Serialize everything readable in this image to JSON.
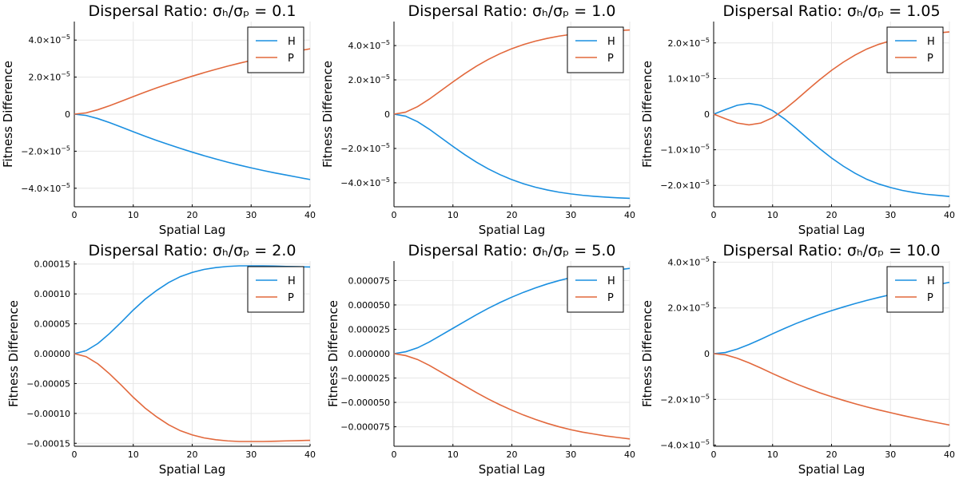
{
  "chart_data": [
    {
      "type": "line",
      "title": "Dispersal Ratio: σₕ/σₚ = 0.1",
      "xlabel": "Spatial Lag",
      "ylabel": "Fitness Difference",
      "xlim": [
        0,
        40
      ],
      "ylim": [
        -5e-05,
        5e-05
      ],
      "xticks": [
        0,
        10,
        20,
        30,
        40
      ],
      "xtick_labels": [
        "0",
        "10",
        "20",
        "30",
        "40"
      ],
      "yticks": [
        -4e-05,
        -2e-05,
        0,
        2e-05,
        4e-05
      ],
      "ytick_labels": [
        {
          "m": "−4.0×10",
          "e": "−5"
        },
        {
          "m": "−2.0×10",
          "e": "−5"
        },
        {
          "m": "0",
          "e": ""
        },
        {
          "m": "2.0×10",
          "e": "−5"
        },
        {
          "m": "4.0×10",
          "e": "−5"
        }
      ],
      "grid": true,
      "legend_position": "top-right",
      "series": [
        {
          "name": "H",
          "color": "#1a8fe0",
          "x": [
            0,
            2,
            4,
            6,
            8,
            10,
            12,
            14,
            16,
            18,
            20,
            22,
            24,
            26,
            28,
            30,
            32,
            34,
            36,
            38,
            40
          ],
          "y": [
            0,
            -7e-07,
            -2.4e-06,
            -4.6e-06,
            -7e-06,
            -9.5e-06,
            -1.19e-05,
            -1.42e-05,
            -1.64e-05,
            -1.85e-05,
            -2.05e-05,
            -2.24e-05,
            -2.42e-05,
            -2.59e-05,
            -2.75e-05,
            -2.9e-05,
            -3.04e-05,
            -3.17e-05,
            -3.29e-05,
            -3.41e-05,
            -3.53e-05
          ]
        },
        {
          "name": "P",
          "color": "#e2683c",
          "x": [
            0,
            2,
            4,
            6,
            8,
            10,
            12,
            14,
            16,
            18,
            20,
            22,
            24,
            26,
            28,
            30,
            32,
            34,
            36,
            38,
            40
          ],
          "y": [
            0,
            7e-07,
            2.4e-06,
            4.6e-06,
            7e-06,
            9.5e-06,
            1.19e-05,
            1.42e-05,
            1.64e-05,
            1.85e-05,
            2.05e-05,
            2.24e-05,
            2.42e-05,
            2.59e-05,
            2.75e-05,
            2.9e-05,
            3.04e-05,
            3.17e-05,
            3.29e-05,
            3.41e-05,
            3.53e-05
          ]
        }
      ]
    },
    {
      "type": "line",
      "title": "Dispersal Ratio: σₕ/σₚ = 1.0",
      "xlabel": "Spatial Lag",
      "ylabel": "Fitness Difference",
      "xlim": [
        0,
        40
      ],
      "ylim": [
        -5.4e-05,
        5.4e-05
      ],
      "xticks": [
        0,
        10,
        20,
        30,
        40
      ],
      "xtick_labels": [
        "0",
        "10",
        "20",
        "30",
        "40"
      ],
      "yticks": [
        -4e-05,
        -2e-05,
        0,
        2e-05,
        4e-05
      ],
      "ytick_labels": [
        {
          "m": "−4.0×10",
          "e": "−5"
        },
        {
          "m": "−2.0×10",
          "e": "−5"
        },
        {
          "m": "0",
          "e": ""
        },
        {
          "m": "2.0×10",
          "e": "−5"
        },
        {
          "m": "4.0×10",
          "e": "−5"
        }
      ],
      "grid": true,
      "legend_position": "top-right",
      "series": [
        {
          "name": "H",
          "color": "#1a8fe0",
          "x": [
            0,
            2,
            4,
            6,
            8,
            10,
            12,
            14,
            16,
            18,
            20,
            22,
            24,
            26,
            28,
            30,
            32,
            34,
            36,
            38,
            40
          ],
          "y": [
            0,
            -1.2e-06,
            -4.4e-06,
            -8.8e-06,
            -1.38e-05,
            -1.88e-05,
            -2.36e-05,
            -2.8e-05,
            -3.19e-05,
            -3.53e-05,
            -3.82e-05,
            -4.06e-05,
            -4.26e-05,
            -4.42e-05,
            -4.55e-05,
            -4.65e-05,
            -4.73e-05,
            -4.79e-05,
            -4.84e-05,
            -4.88e-05,
            -4.91e-05
          ]
        },
        {
          "name": "P",
          "color": "#e2683c",
          "x": [
            0,
            2,
            4,
            6,
            8,
            10,
            12,
            14,
            16,
            18,
            20,
            22,
            24,
            26,
            28,
            30,
            32,
            34,
            36,
            38,
            40
          ],
          "y": [
            0,
            1.2e-06,
            4.4e-06,
            8.8e-06,
            1.38e-05,
            1.88e-05,
            2.36e-05,
            2.8e-05,
            3.19e-05,
            3.53e-05,
            3.82e-05,
            4.06e-05,
            4.26e-05,
            4.42e-05,
            4.55e-05,
            4.65e-05,
            4.73e-05,
            4.79e-05,
            4.84e-05,
            4.88e-05,
            4.91e-05
          ]
        }
      ]
    },
    {
      "type": "line",
      "title": "Dispersal Ratio: σₕ/σₚ = 1.05",
      "xlabel": "Spatial Lag",
      "ylabel": "Fitness Difference",
      "xlim": [
        0,
        40
      ],
      "ylim": [
        -2.6e-05,
        2.6e-05
      ],
      "xticks": [
        0,
        10,
        20,
        30,
        40
      ],
      "xtick_labels": [
        "0",
        "10",
        "20",
        "30",
        "40"
      ],
      "yticks": [
        -2e-05,
        -1e-05,
        0,
        1e-05,
        2e-05
      ],
      "ytick_labels": [
        {
          "m": "−2.0×10",
          "e": "−5"
        },
        {
          "m": "−1.0×10",
          "e": "−5"
        },
        {
          "m": "0",
          "e": ""
        },
        {
          "m": "1.0×10",
          "e": "−5"
        },
        {
          "m": "2.0×10",
          "e": "−5"
        }
      ],
      "grid": true,
      "legend_position": "top-right",
      "series": [
        {
          "name": "H",
          "color": "#1a8fe0",
          "x": [
            0,
            2,
            4,
            6,
            8,
            10,
            12,
            14,
            16,
            18,
            20,
            22,
            24,
            26,
            28,
            30,
            32,
            34,
            36,
            38,
            40
          ],
          "y": [
            0,
            1.3e-06,
            2.5e-06,
            3e-06,
            2.5e-06,
            1e-06,
            -1.3e-06,
            -4e-06,
            -6.9e-06,
            -9.7e-06,
            -1.23e-05,
            -1.46e-05,
            -1.66e-05,
            -1.83e-05,
            -1.96e-05,
            -2.06e-05,
            -2.14e-05,
            -2.2e-05,
            -2.25e-05,
            -2.28e-05,
            -2.31e-05
          ]
        },
        {
          "name": "P",
          "color": "#e2683c",
          "x": [
            0,
            2,
            4,
            6,
            8,
            10,
            12,
            14,
            16,
            18,
            20,
            22,
            24,
            26,
            28,
            30,
            32,
            34,
            36,
            38,
            40
          ],
          "y": [
            0,
            -1.3e-06,
            -2.5e-06,
            -3e-06,
            -2.5e-06,
            -1e-06,
            1.3e-06,
            4e-06,
            6.9e-06,
            9.7e-06,
            1.23e-05,
            1.46e-05,
            1.66e-05,
            1.83e-05,
            1.96e-05,
            2.06e-05,
            2.14e-05,
            2.2e-05,
            2.25e-05,
            2.28e-05,
            2.31e-05
          ]
        }
      ]
    },
    {
      "type": "line",
      "title": "Dispersal Ratio: σₕ/σₚ = 2.0",
      "xlabel": "Spatial Lag",
      "ylabel": "Fitness Difference",
      "xlim": [
        0,
        40
      ],
      "ylim": [
        -0.000155,
        0.000155
      ],
      "xticks": [
        0,
        10,
        20,
        30,
        40
      ],
      "xtick_labels": [
        "0",
        "10",
        "20",
        "30",
        "40"
      ],
      "yticks": [
        -0.00015,
        -0.0001,
        -5e-05,
        0,
        5e-05,
        0.0001,
        0.00015
      ],
      "ytick_labels": [
        {
          "m": "−0.00015",
          "e": ""
        },
        {
          "m": "−0.00010",
          "e": ""
        },
        {
          "m": "−0.00005",
          "e": ""
        },
        {
          "m": "0.00000",
          "e": ""
        },
        {
          "m": "0.00005",
          "e": ""
        },
        {
          "m": "0.00010",
          "e": ""
        },
        {
          "m": "0.00015",
          "e": ""
        }
      ],
      "grid": true,
      "legend_position": "top-right",
      "series": [
        {
          "name": "H",
          "color": "#1a8fe0",
          "x": [
            0,
            2,
            4,
            6,
            8,
            10,
            12,
            14,
            16,
            18,
            20,
            22,
            24,
            26,
            28,
            30,
            32,
            34,
            36,
            38,
            40
          ],
          "y": [
            0,
            5e-06,
            1.7e-05,
            3.4e-05,
            5.3e-05,
            7.3e-05,
            9.1e-05,
            0.000106,
            0.000119,
            0.000129,
            0.000136,
            0.000141,
            0.000144,
            0.000146,
            0.000147,
            0.000147,
            0.000147,
            0.0001465,
            0.000146,
            0.0001455,
            0.000145
          ]
        },
        {
          "name": "P",
          "color": "#e2683c",
          "x": [
            0,
            2,
            4,
            6,
            8,
            10,
            12,
            14,
            16,
            18,
            20,
            22,
            24,
            26,
            28,
            30,
            32,
            34,
            36,
            38,
            40
          ],
          "y": [
            0,
            -5e-06,
            -1.7e-05,
            -3.4e-05,
            -5.3e-05,
            -7.3e-05,
            -9.1e-05,
            -0.000106,
            -0.000119,
            -0.000129,
            -0.000136,
            -0.000141,
            -0.000144,
            -0.000146,
            -0.000147,
            -0.000147,
            -0.000147,
            -0.0001465,
            -0.000146,
            -0.0001455,
            -0.000145
          ]
        }
      ]
    },
    {
      "type": "line",
      "title": "Dispersal Ratio: σₕ/σₚ = 5.0",
      "xlabel": "Spatial Lag",
      "ylabel": "Fitness Difference",
      "xlim": [
        0,
        40
      ],
      "ylim": [
        -9.5e-05,
        9.5e-05
      ],
      "xticks": [
        0,
        10,
        20,
        30,
        40
      ],
      "xtick_labels": [
        "0",
        "10",
        "20",
        "30",
        "40"
      ],
      "yticks": [
        -7.5e-05,
        -5e-05,
        -2.5e-05,
        0,
        2.5e-05,
        5e-05,
        7.5e-05
      ],
      "ytick_labels": [
        {
          "m": "−0.000075",
          "e": ""
        },
        {
          "m": "−0.000050",
          "e": ""
        },
        {
          "m": "−0.000025",
          "e": ""
        },
        {
          "m": "0.000000",
          "e": ""
        },
        {
          "m": "0.000025",
          "e": ""
        },
        {
          "m": "0.000050",
          "e": ""
        },
        {
          "m": "0.000075",
          "e": ""
        }
      ],
      "grid": true,
      "legend_position": "top-right",
      "series": [
        {
          "name": "H",
          "color": "#1a8fe0",
          "x": [
            0,
            2,
            4,
            6,
            8,
            10,
            12,
            14,
            16,
            18,
            20,
            22,
            24,
            26,
            28,
            30,
            32,
            34,
            36,
            38,
            40
          ],
          "y": [
            0,
            2e-06,
            6e-06,
            1.2e-05,
            1.9e-05,
            2.6e-05,
            3.3e-05,
            4e-05,
            4.65e-05,
            5.25e-05,
            5.8e-05,
            6.3e-05,
            6.75e-05,
            7.15e-05,
            7.5e-05,
            7.8e-05,
            8.05e-05,
            8.25e-05,
            8.45e-05,
            8.6e-05,
            8.75e-05
          ]
        },
        {
          "name": "P",
          "color": "#e2683c",
          "x": [
            0,
            2,
            4,
            6,
            8,
            10,
            12,
            14,
            16,
            18,
            20,
            22,
            24,
            26,
            28,
            30,
            32,
            34,
            36,
            38,
            40
          ],
          "y": [
            0,
            -2e-06,
            -6e-06,
            -1.2e-05,
            -1.9e-05,
            -2.6e-05,
            -3.3e-05,
            -4e-05,
            -4.65e-05,
            -5.25e-05,
            -5.8e-05,
            -6.3e-05,
            -6.75e-05,
            -7.15e-05,
            -7.5e-05,
            -7.8e-05,
            -8.05e-05,
            -8.25e-05,
            -8.45e-05,
            -8.6e-05,
            -8.75e-05
          ]
        }
      ]
    },
    {
      "type": "line",
      "title": "Dispersal Ratio: σₕ/σₚ = 10.0",
      "xlabel": "Spatial Lag",
      "ylabel": "Fitness Difference",
      "xlim": [
        0,
        40
      ],
      "ylim": [
        -4.05e-05,
        4.05e-05
      ],
      "xticks": [
        0,
        10,
        20,
        30,
        40
      ],
      "xtick_labels": [
        "0",
        "10",
        "20",
        "30",
        "40"
      ],
      "yticks": [
        -4e-05,
        -2e-05,
        0,
        2e-05,
        4e-05
      ],
      "ytick_labels": [
        {
          "m": "−4.0×10",
          "e": "−5"
        },
        {
          "m": "−2.0×10",
          "e": "−5"
        },
        {
          "m": "0",
          "e": ""
        },
        {
          "m": "2.0×10",
          "e": "−5"
        },
        {
          "m": "4.0×10",
          "e": "−5"
        }
      ],
      "grid": true,
      "legend_position": "top-right",
      "series": [
        {
          "name": "H",
          "color": "#1a8fe0",
          "x": [
            0,
            2,
            4,
            6,
            8,
            10,
            12,
            14,
            16,
            18,
            20,
            22,
            24,
            26,
            28,
            30,
            32,
            34,
            36,
            38,
            40
          ],
          "y": [
            0,
            5e-07,
            2e-06,
            4e-06,
            6.3e-06,
            8.7e-06,
            1.1e-05,
            1.32e-05,
            1.52e-05,
            1.71e-05,
            1.88e-05,
            2.04e-05,
            2.19e-05,
            2.33e-05,
            2.46e-05,
            2.58e-05,
            2.7e-05,
            2.81e-05,
            2.92e-05,
            3.02e-05,
            3.12e-05
          ]
        },
        {
          "name": "P",
          "color": "#e2683c",
          "x": [
            0,
            2,
            4,
            6,
            8,
            10,
            12,
            14,
            16,
            18,
            20,
            22,
            24,
            26,
            28,
            30,
            32,
            34,
            36,
            38,
            40
          ],
          "y": [
            0,
            -5e-07,
            -2e-06,
            -4e-06,
            -6.3e-06,
            -8.7e-06,
            -1.1e-05,
            -1.32e-05,
            -1.52e-05,
            -1.71e-05,
            -1.88e-05,
            -2.04e-05,
            -2.19e-05,
            -2.33e-05,
            -2.46e-05,
            -2.58e-05,
            -2.7e-05,
            -2.81e-05,
            -2.92e-05,
            -3.02e-05,
            -3.12e-05
          ]
        }
      ]
    }
  ]
}
